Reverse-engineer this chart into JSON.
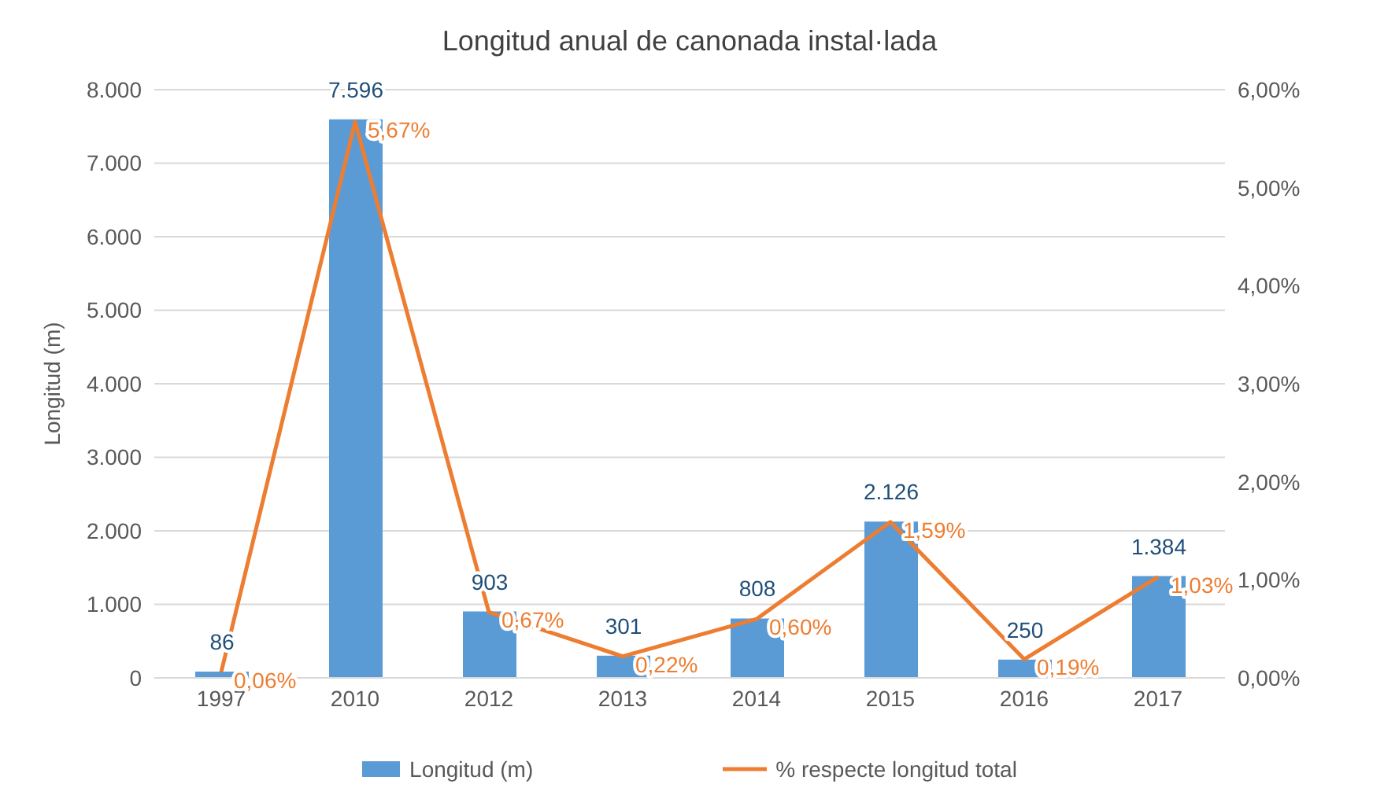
{
  "chart_data": {
    "type": "bar",
    "title": "Longitud anual de canonada instal·lada",
    "ylabel": "Longitud (m)",
    "categories": [
      "1997",
      "2010",
      "2012",
      "2013",
      "2014",
      "2015",
      "2016",
      "2017"
    ],
    "series": [
      {
        "name": "Longitud (m)",
        "color": "#5b9bd5",
        "values": [
          86,
          7596,
          903,
          301,
          808,
          2126,
          250,
          1384
        ],
        "value_labels": [
          "86",
          "7.596",
          "903",
          "301",
          "808",
          "2.126",
          "250",
          "1.384"
        ]
      },
      {
        "name": "% respecte longitud total",
        "type": "line",
        "axis": "y2",
        "color": "#ed7d31",
        "values": [
          0.06,
          5.67,
          0.67,
          0.22,
          0.6,
          1.59,
          0.19,
          1.03
        ],
        "value_labels": [
          "0,06%",
          "5,67%",
          "0,67%",
          "0,22%",
          "0,60%",
          "1,59%",
          "0,19%",
          "1,03%"
        ]
      }
    ],
    "ylim": [
      0,
      8000
    ],
    "yticks": [
      {
        "value": 0,
        "label": "0"
      },
      {
        "value": 1000,
        "label": "1.000"
      },
      {
        "value": 2000,
        "label": "2.000"
      },
      {
        "value": 3000,
        "label": "3.000"
      },
      {
        "value": 4000,
        "label": "4.000"
      },
      {
        "value": 5000,
        "label": "5.000"
      },
      {
        "value": 6000,
        "label": "6.000"
      },
      {
        "value": 7000,
        "label": "7.000"
      },
      {
        "value": 8000,
        "label": "8.000"
      }
    ],
    "y2lim": [
      0,
      6
    ],
    "y2ticks": [
      {
        "value": 0,
        "label": "0,00%"
      },
      {
        "value": 1,
        "label": "1,00%"
      },
      {
        "value": 2,
        "label": "2,00%"
      },
      {
        "value": 3,
        "label": "3,00%"
      },
      {
        "value": 4,
        "label": "4,00%"
      },
      {
        "value": 5,
        "label": "5,00%"
      },
      {
        "value": 6,
        "label": "6,00%"
      }
    ],
    "grid": "y",
    "legend": "bottom",
    "marker": "none"
  }
}
